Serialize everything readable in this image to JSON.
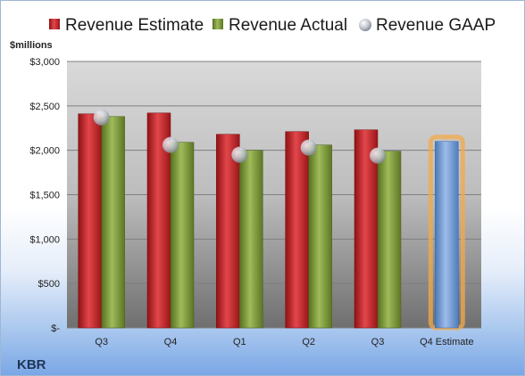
{
  "chart_data": {
    "type": "bar",
    "title": "",
    "ylabel": "$millions",
    "company": "KBR",
    "categories": [
      "Q3",
      "Q4",
      "Q1",
      "Q2",
      "Q3",
      "Q4 Estimate"
    ],
    "y_ticks": [
      "$-",
      "$500",
      "$1,000",
      "$1,500",
      "$2,000",
      "$2,500",
      "$3,000"
    ],
    "ylim": [
      0,
      3000
    ],
    "grid": true,
    "legend_position": "top",
    "series": [
      {
        "name": "Revenue Estimate",
        "kind": "bar",
        "color": "#c8262b",
        "values": [
          2410,
          2420,
          2180,
          2210,
          2230,
          null
        ]
      },
      {
        "name": "Revenue Actual",
        "kind": "bar",
        "color": "#7e9a3d",
        "values": [
          2380,
          2090,
          2000,
          2060,
          1990,
          2100
        ]
      },
      {
        "name": "Revenue GAAP",
        "kind": "marker",
        "color": "#c9ced6",
        "values": [
          2370,
          2060,
          1950,
          2030,
          1940,
          null
        ]
      }
    ],
    "highlight": {
      "category_index": 5,
      "bar_color": "#6f9bd6",
      "glow_color": "#f3a94a"
    }
  }
}
